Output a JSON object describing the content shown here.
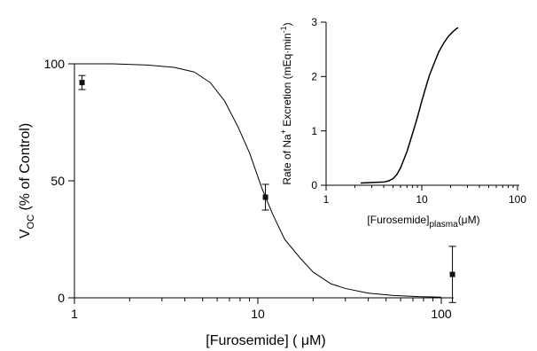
{
  "chart_data": [
    {
      "type": "scatter",
      "xscale": "log",
      "xlim": [
        1,
        100
      ],
      "ylim": [
        0,
        100
      ],
      "xticks": [
        "1",
        "10",
        "100"
      ],
      "yticks": [
        "0",
        "50",
        "100"
      ],
      "xlabel": "[Furosemide] ( μM)",
      "ylabel_main": "V",
      "ylabel_sub": "OC",
      "ylabel_rest": " (% of Control)",
      "series": [
        {
          "type": "scatter",
          "x": [
            1.1,
            11,
            115
          ],
          "y": [
            92,
            43,
            10
          ],
          "yerr": [
            3,
            5.5,
            12
          ]
        },
        {
          "type": "line",
          "x": [
            1,
            1.6,
            2.5,
            3.5,
            4.5,
            5.5,
            6.6,
            7.8,
            9,
            10.5,
            12,
            14,
            17,
            20,
            25,
            30,
            40,
            55,
            75,
            100
          ],
          "y": [
            100,
            100,
            99.5,
            98.5,
            96.5,
            92,
            84,
            73,
            62,
            47,
            36,
            25,
            17,
            11,
            6,
            4,
            2,
            1,
            0.5,
            0.3
          ]
        }
      ]
    },
    {
      "type": "line",
      "xscale": "log",
      "xlim": [
        1,
        100
      ],
      "ylim": [
        0,
        3
      ],
      "xticks": [
        "1",
        "10",
        "100"
      ],
      "yticks": [
        "0",
        "1",
        "2",
        "3"
      ],
      "xlabel_main": "[Furosemide]",
      "xlabel_sub": "plasma",
      "xlabel_rest": "(μM)",
      "ylabel_a": "Rate of Na",
      "ylabel_sup": "+",
      "ylabel_b": " Excretion (mEq·min",
      "ylabel_sup2": "-1",
      "ylabel_c": ")",
      "series": [
        {
          "type": "line",
          "x": [
            2.3,
            3,
            4,
            4.5,
            5,
            5.5,
            6,
            7,
            8,
            9,
            10,
            11,
            12,
            13.5,
            15,
            17,
            19,
            21,
            23,
            24
          ],
          "y": [
            0.04,
            0.05,
            0.06,
            0.08,
            0.12,
            0.2,
            0.32,
            0.62,
            0.95,
            1.25,
            1.55,
            1.8,
            2.02,
            2.25,
            2.45,
            2.62,
            2.74,
            2.82,
            2.88,
            2.9
          ]
        }
      ]
    }
  ]
}
